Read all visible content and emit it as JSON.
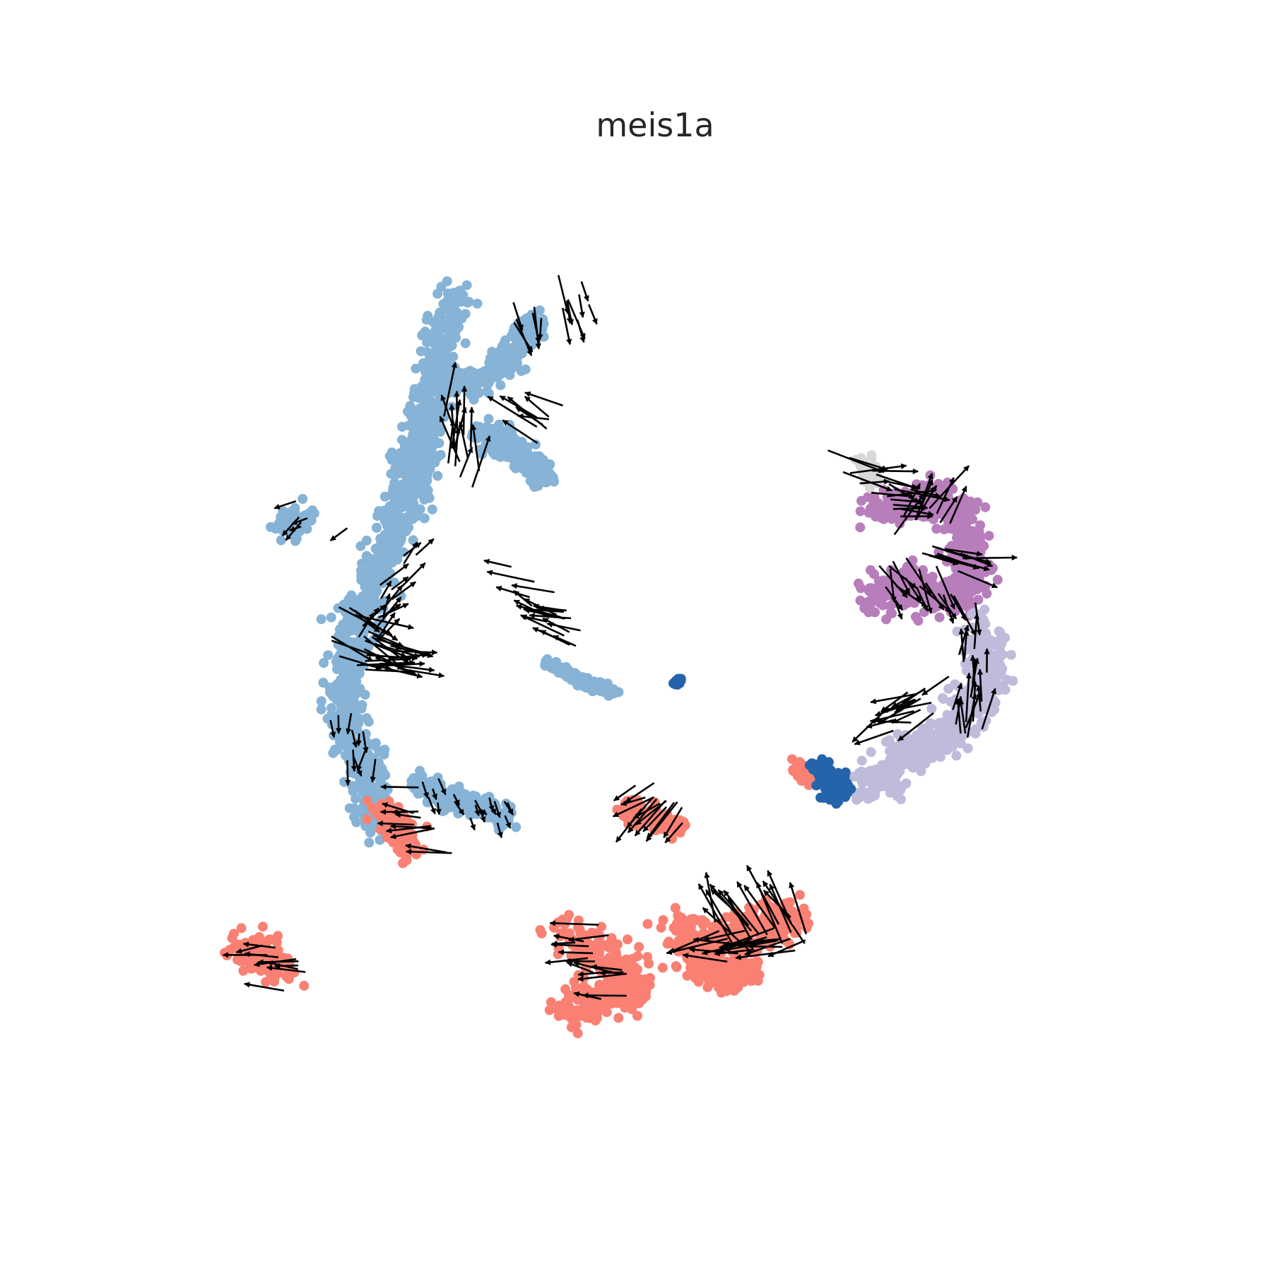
{
  "chart_data": {
    "type": "scatter",
    "title": "meis1a",
    "xlabel": "",
    "ylabel": "",
    "axes_visible": false,
    "grid": false,
    "legend": "none",
    "xlim": [
      0,
      100
    ],
    "ylim": [
      0,
      100
    ],
    "point_colors": {
      "light_blue": "#86b3d6",
      "salmon": "#f98073",
      "purple": "#b87ebb",
      "lavender": "#bebbdb",
      "dark_blue": "#2464ab",
      "grey": "#d8d8d8"
    },
    "arrow_color": "#000000",
    "clusters": [
      {
        "color": "light_blue",
        "path": [
          [
            31,
            88
          ],
          [
            29,
            83
          ],
          [
            28,
            77
          ],
          [
            27,
            72
          ],
          [
            26,
            68
          ],
          [
            24,
            63
          ],
          [
            22,
            57
          ],
          [
            20,
            53
          ],
          [
            19,
            47
          ],
          [
            20,
            42
          ],
          [
            22,
            37
          ],
          [
            23,
            33
          ]
        ],
        "spread": 1.8
      },
      {
        "color": "light_blue",
        "path": [
          [
            33,
            74
          ],
          [
            37,
            72
          ],
          [
            40,
            69
          ]
        ],
        "spread": 1.4
      },
      {
        "color": "light_blue",
        "path": [
          [
            29,
            80
          ],
          [
            33,
            79
          ],
          [
            36,
            81
          ],
          [
            38,
            84
          ],
          [
            39,
            86
          ]
        ],
        "spread": 1.2
      },
      {
        "color": "light_blue",
        "path": [
          [
            28,
            71
          ],
          [
            25,
            71
          ]
        ],
        "spread": 1.5
      },
      {
        "color": "light_blue",
        "path": [
          [
            13,
            65
          ],
          [
            15,
            64
          ]
        ],
        "spread": 1.5
      },
      {
        "color": "light_blue",
        "path": [
          [
            27,
            37
          ],
          [
            30,
            36
          ],
          [
            33,
            35
          ],
          [
            36,
            34
          ]
        ],
        "spread": 1.2
      },
      {
        "color": "light_blue",
        "path": [
          [
            40,
            50
          ],
          [
            44,
            48
          ],
          [
            47,
            47
          ]
        ],
        "spread": 0.5
      },
      {
        "color": "salmon",
        "path": [
          [
            23,
            35
          ],
          [
            25,
            33
          ],
          [
            26,
            30
          ]
        ],
        "spread": 1.2
      },
      {
        "color": "salmon",
        "path": [
          [
            48,
            35
          ],
          [
            51,
            34
          ],
          [
            54,
            33
          ]
        ],
        "spread": 1.0
      },
      {
        "color": "salmon",
        "path": [
          [
            8,
            20
          ],
          [
            11,
            20
          ],
          [
            13,
            18
          ]
        ],
        "spread": 1.5
      },
      {
        "color": "salmon",
        "path": [
          [
            42,
            22
          ],
          [
            45,
            20
          ],
          [
            48,
            18
          ],
          [
            50,
            16
          ],
          [
            45,
            15
          ],
          [
            43,
            14
          ]
        ],
        "spread": 1.8
      },
      {
        "color": "salmon",
        "path": [
          [
            53,
            22
          ],
          [
            57,
            21
          ],
          [
            61,
            22
          ],
          [
            64,
            23
          ],
          [
            66,
            24
          ]
        ],
        "spread": 2.0
      },
      {
        "color": "salmon",
        "path": [
          [
            55,
            19
          ],
          [
            59,
            17
          ],
          [
            62,
            19
          ]
        ],
        "spread": 1.4
      },
      {
        "color": "salmon",
        "path": [
          [
            66,
            39
          ],
          [
            68,
            38
          ]
        ],
        "spread": 0.8
      },
      {
        "color": "purple",
        "path": [
          [
            74,
            66
          ],
          [
            77,
            66
          ],
          [
            81,
            67
          ],
          [
            83,
            65
          ],
          [
            84,
            62
          ],
          [
            84,
            59
          ],
          [
            83,
            56
          ],
          [
            80,
            57
          ],
          [
            76,
            58
          ],
          [
            74,
            56
          ]
        ],
        "spread": 1.8
      },
      {
        "color": "lavender",
        "path": [
          [
            85,
            54
          ],
          [
            86,
            50
          ],
          [
            85,
            46
          ],
          [
            82,
            43
          ],
          [
            79,
            41
          ],
          [
            76,
            39
          ],
          [
            73,
            37
          ]
        ],
        "spread": 2.0
      },
      {
        "color": "dark_blue",
        "path": [
          [
            68,
            39
          ],
          [
            70,
            38
          ],
          [
            71,
            37
          ],
          [
            69,
            36
          ]
        ],
        "spread": 1.0
      },
      {
        "color": "dark_blue",
        "path": [
          [
            53.5,
            48
          ],
          [
            54,
            48
          ]
        ],
        "spread": 0.3
      },
      {
        "color": "grey",
        "path": [
          [
            73,
            71
          ],
          [
            74,
            69
          ]
        ],
        "spread": 0.8
      }
    ],
    "velocity_regions": [
      {
        "path": [
          [
            37,
            84
          ],
          [
            41,
            86
          ],
          [
            43,
            87
          ]
        ],
        "dir": [
          0.2,
          -1.0
        ],
        "length": 3.5
      },
      {
        "path": [
          [
            38,
            77
          ],
          [
            40,
            74
          ]
        ],
        "dir": [
          -0.85,
          0.5
        ],
        "length": 5
      },
      {
        "path": [
          [
            30,
            77
          ],
          [
            31,
            73
          ],
          [
            33,
            71
          ]
        ],
        "dir": [
          0.0,
          1.0
        ],
        "length": 4.5
      },
      {
        "path": [
          [
            27,
            62
          ],
          [
            25,
            58
          ],
          [
            23,
            55
          ]
        ],
        "dir": [
          0.5,
          0.6
        ],
        "length": 3
      },
      {
        "path": [
          [
            21,
            55
          ],
          [
            23,
            52
          ],
          [
            25,
            50
          ]
        ],
        "dir": [
          0.85,
          -0.5
        ],
        "length": 5
      },
      {
        "path": [
          [
            20,
            50
          ],
          [
            24,
            50
          ],
          [
            27,
            50
          ]
        ],
        "dir": [
          1.0,
          -0.1
        ],
        "length": 5
      },
      {
        "path": [
          [
            20,
            43
          ],
          [
            21,
            38
          ]
        ],
        "dir": [
          0.0,
          -1.0
        ],
        "length": 2
      },
      {
        "path": [
          [
            28,
            37
          ],
          [
            32,
            35
          ],
          [
            36,
            34
          ]
        ],
        "dir": [
          0.4,
          -0.9
        ],
        "length": 1.5
      },
      {
        "path": [
          [
            24,
            35
          ],
          [
            26,
            33
          ],
          [
            27,
            31
          ]
        ],
        "dir": [
          -1.0,
          0.1
        ],
        "length": 4
      },
      {
        "path": [
          [
            13,
            65
          ],
          [
            15,
            64
          ]
        ],
        "dir": [
          -0.8,
          -0.6
        ],
        "length": 2
      },
      {
        "path": [
          [
            37,
            59
          ],
          [
            40,
            55
          ],
          [
            43,
            52
          ]
        ],
        "dir": [
          -1.0,
          0.3
        ],
        "length": 4
      },
      {
        "path": [
          [
            48,
            36
          ],
          [
            51,
            34
          ],
          [
            54,
            33
          ]
        ],
        "dir": [
          -0.7,
          -0.7
        ],
        "length": 4
      },
      {
        "path": [
          [
            9,
            20
          ],
          [
            11,
            19
          ],
          [
            13,
            18
          ]
        ],
        "dir": [
          -1.0,
          0.1
        ],
        "length": 4
      },
      {
        "path": [
          [
            42,
            22
          ],
          [
            44,
            19
          ],
          [
            46,
            16
          ]
        ],
        "dir": [
          -1.0,
          0.0
        ],
        "length": 4
      },
      {
        "path": [
          [
            57,
            24
          ],
          [
            61,
            25
          ],
          [
            65,
            24
          ]
        ],
        "dir": [
          -0.6,
          0.9
        ],
        "length": 6
      },
      {
        "path": [
          [
            56,
            20
          ],
          [
            60,
            21
          ],
          [
            64,
            20
          ]
        ],
        "dir": [
          -1.0,
          -0.1
        ],
        "length": 5
      },
      {
        "path": [
          [
            73,
            70
          ],
          [
            77,
            68
          ],
          [
            80,
            66
          ]
        ],
        "dir": [
          1.0,
          -0.2
        ],
        "length": 5
      },
      {
        "path": [
          [
            78,
            67
          ],
          [
            82,
            67
          ]
        ],
        "dir": [
          0.5,
          0.9
        ],
        "length": 5
      },
      {
        "path": [
          [
            81,
            62
          ],
          [
            85,
            60
          ]
        ],
        "dir": [
          1.0,
          -0.2
        ],
        "length": 5
      },
      {
        "path": [
          [
            76,
            58
          ],
          [
            80,
            56
          ],
          [
            84,
            55
          ]
        ],
        "dir": [
          0.5,
          -0.9
        ],
        "length": 4
      },
      {
        "path": [
          [
            84,
            52
          ],
          [
            85,
            47
          ],
          [
            83,
            44
          ]
        ],
        "dir": [
          0.1,
          1.0
        ],
        "length": 4
      },
      {
        "path": [
          [
            80,
            48
          ],
          [
            77,
            45
          ],
          [
            74,
            43
          ]
        ],
        "dir": [
          -0.9,
          -0.4
        ],
        "length": 4
      }
    ]
  }
}
